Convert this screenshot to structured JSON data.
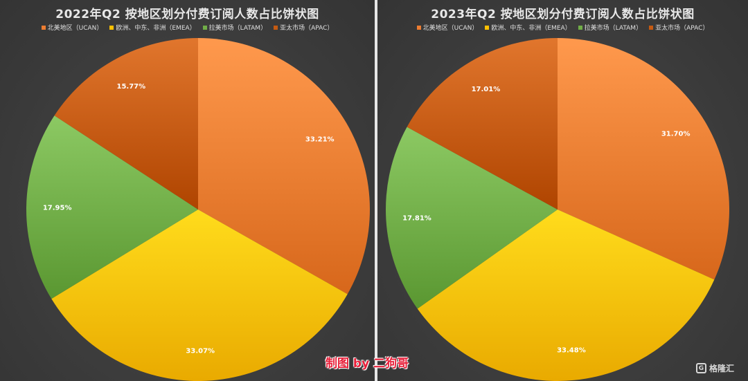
{
  "chart_data": [
    {
      "type": "pie",
      "title": "2022年Q2 按地区划分付费订阅人数占比饼状图",
      "categories": [
        "北美地区（UCAN）",
        "欧洲、中东、非洲（EMEA）",
        "拉美市场（LATAM）",
        "亚太市场（APAC）"
      ],
      "values": [
        33.21,
        33.07,
        17.95,
        15.77
      ],
      "labels": [
        "33.21%",
        "33.07%",
        "17.95%",
        "15.77%"
      ],
      "colors": [
        "#ED7D31",
        "#FFC000",
        "#70AD47",
        "#C55A11"
      ],
      "start_angle_deg": 0,
      "direction": "clockwise",
      "legend_position": "top"
    },
    {
      "type": "pie",
      "title": "2023年Q2 按地区划分付费订阅人数占比饼状图",
      "categories": [
        "北美地区（UCAN）",
        "欧洲、中东、非洲（EMEA）",
        "拉美市场（LATAM）",
        "亚太市场（APAC）"
      ],
      "values": [
        31.7,
        33.48,
        17.81,
        17.01
      ],
      "labels": [
        "31.70%",
        "33.48%",
        "17.81%",
        "17.01%"
      ],
      "colors": [
        "#ED7D31",
        "#FFC000",
        "#70AD47",
        "#C55A11"
      ],
      "start_angle_deg": 0,
      "direction": "clockwise",
      "legend_position": "top"
    }
  ],
  "credit": "制图 by 二狗哥",
  "watermark": {
    "icon": "gelonghui-logo-icon",
    "icon_glyph": "G",
    "text": "格隆汇"
  }
}
